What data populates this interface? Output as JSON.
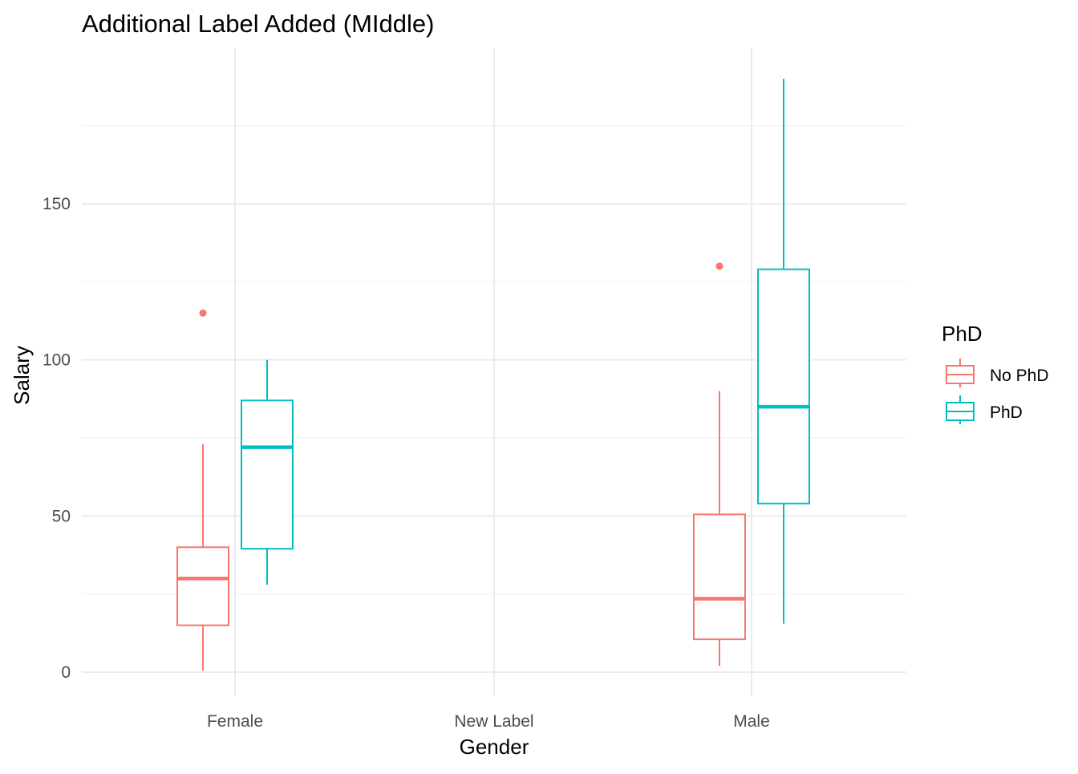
{
  "chart_data": {
    "type": "box",
    "title": "Additional Label Added (MIddle)",
    "xlabel": "Gender",
    "ylabel": "Salary",
    "categories": [
      "Female",
      "New Label",
      "Male"
    ],
    "yticks": [
      0,
      50,
      100,
      150
    ],
    "ylim": [
      -8,
      199
    ],
    "grid": true,
    "legend": {
      "title": "PhD",
      "position": "right",
      "entries": [
        "No PhD",
        "PhD"
      ]
    },
    "series": [
      {
        "name": "No PhD",
        "color": "#F8766D",
        "boxes": [
          {
            "category": "Female",
            "min": 0.5,
            "q1": 15,
            "median": 30,
            "q3": 40,
            "max": 73,
            "outliers": [
              115
            ]
          },
          {
            "category": "Male",
            "min": 2,
            "q1": 10.5,
            "median": 23.5,
            "q3": 50.5,
            "max": 90,
            "outliers": [
              130
            ]
          }
        ]
      },
      {
        "name": "PhD",
        "color": "#00BFC4",
        "boxes": [
          {
            "category": "Female",
            "min": 28,
            "q1": 39.5,
            "median": 72,
            "q3": 87,
            "max": 100,
            "outliers": []
          },
          {
            "category": "Male",
            "min": 15.5,
            "q1": 54,
            "median": 85,
            "q3": 129,
            "max": 190,
            "outliers": []
          }
        ]
      }
    ]
  }
}
